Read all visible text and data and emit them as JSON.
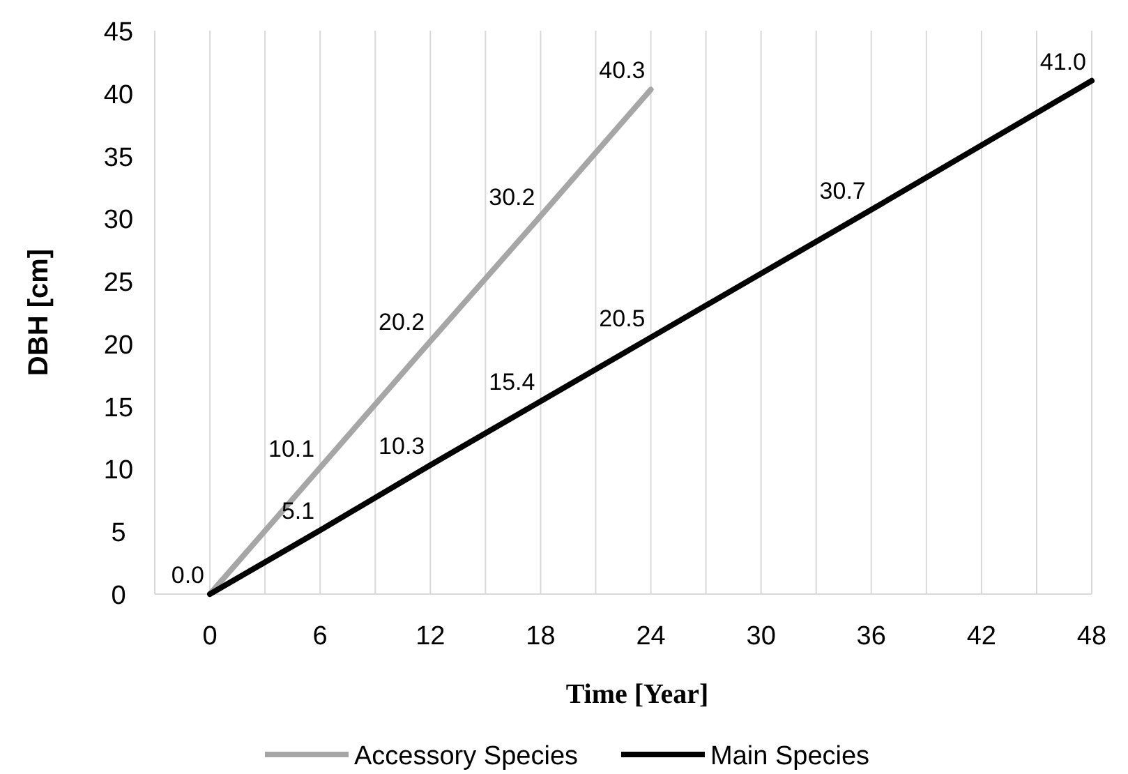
{
  "chart_data": {
    "type": "line",
    "xlabel": "Time [Year]",
    "ylabel": "DBH [cm]",
    "series": [
      {
        "name": "Accessory Species",
        "color": "#a6a6a6",
        "x": [
          0,
          6,
          12,
          18,
          24
        ],
        "values": [
          0.0,
          10.1,
          20.2,
          30.2,
          40.3
        ],
        "value_labels": [
          "0.0",
          "10.1",
          "20.2",
          "30.2",
          "40.3"
        ]
      },
      {
        "name": "Main Species",
        "color": "#000000",
        "x": [
          0,
          6,
          12,
          18,
          24,
          36,
          48
        ],
        "values": [
          0.0,
          5.1,
          10.3,
          15.4,
          20.5,
          30.7,
          41.0
        ],
        "value_labels": [
          null,
          "5.1",
          "10.3",
          "15.4",
          "20.5",
          "30.7",
          "41.0"
        ]
      }
    ],
    "xlim": [
      -3,
      48
    ],
    "xticks": [
      {
        "value": -3,
        "label": null
      },
      0,
      {
        "value": 3,
        "label": null
      },
      6,
      {
        "value": 9,
        "label": null
      },
      12,
      {
        "value": 15,
        "label": null
      },
      18,
      {
        "value": 21,
        "label": null
      },
      24,
      {
        "value": 27,
        "label": null
      },
      30,
      {
        "value": 33,
        "label": null
      },
      36,
      {
        "value": 39,
        "label": null
      },
      42,
      {
        "value": 45,
        "label": null
      },
      48
    ],
    "ylim": [
      0,
      45
    ],
    "yticks": [
      0,
      5,
      10,
      15,
      20,
      25,
      30,
      35,
      40,
      45
    ],
    "grid": "x",
    "legend": "bottom",
    "marker": "none",
    "line_style": "solid"
  }
}
